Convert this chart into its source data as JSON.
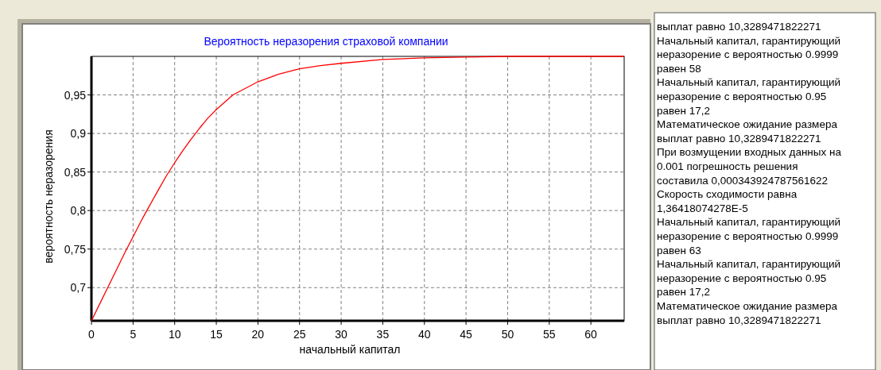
{
  "chart_data": {
    "type": "line",
    "title": "Вероятность неразорения страховой компании",
    "xlabel": "начальный капитал",
    "ylabel": "вероятность неразорения",
    "x": [
      0,
      1,
      2,
      3,
      4,
      5,
      6,
      6.5,
      8,
      9,
      10,
      11,
      12,
      13,
      14,
      15,
      17,
      20,
      22.5,
      25,
      27.5,
      30,
      35,
      40,
      45,
      50,
      55,
      60,
      64
    ],
    "series": [
      {
        "color": "#ff0000",
        "values": [
          0.657,
          0.679,
          0.701,
          0.723,
          0.745,
          0.766,
          0.787,
          0.797,
          0.826,
          0.845,
          0.862,
          0.878,
          0.893,
          0.907,
          0.92,
          0.931,
          0.95,
          0.967,
          0.977,
          0.984,
          0.988,
          0.991,
          0.996,
          0.998,
          0.999,
          1.0,
          1.0,
          1.0,
          1.0
        ]
      }
    ],
    "xlim": [
      0,
      64
    ],
    "ylim": [
      0.657,
      1.0
    ],
    "xticks": [
      0,
      5,
      10,
      15,
      20,
      25,
      30,
      35,
      40,
      45,
      50,
      55,
      60
    ],
    "yticks": [
      {
        "value": 0.7,
        "label": "0,7"
      },
      {
        "value": 0.75,
        "label": "0,75"
      },
      {
        "value": 0.8,
        "label": "0,8"
      },
      {
        "value": 0.85,
        "label": "0,85"
      },
      {
        "value": 0.9,
        "label": "0,9"
      },
      {
        "value": 0.95,
        "label": "0,95"
      }
    ],
    "grid": true,
    "line_style": "solid",
    "marker": "none",
    "annotations": [
      "выплат равно 10,3289471822271",
      "Начальный капитал, гарантирующий",
      "неразорение с вероятностью 0.9999",
      "равен 58",
      "Начальный капитал, гарантирующий",
      "неразорение с вероятностью 0.95",
      "равен 17,2",
      "Математическое ожидание размера",
      "выплат равно 10,3289471822271",
      "При возмущении входных данных на",
      "0.001 погрешность решения",
      "составила 0,000343924787561622",
      "Скорость сходимости равна",
      "1,36418074278E-5",
      "Начальный капитал, гарантирующий",
      "неразорение с вероятностью 0.9999",
      "равен 63",
      "Начальный капитал, гарантирующий",
      "неразорение с вероятностью 0.95",
      "равен 17,2",
      "Математическое ожидание размера",
      "выплат равно 10,3289471822271"
    ]
  }
}
